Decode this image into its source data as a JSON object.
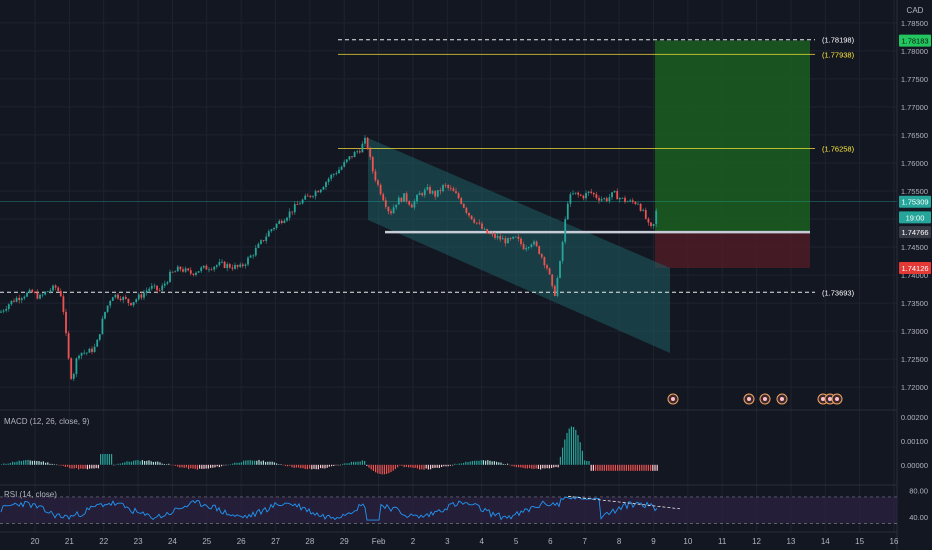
{
  "currency": "CAD",
  "colors": {
    "background": "#131722",
    "grid": "#1f2330",
    "up": "#26a69a",
    "down": "#ef5350",
    "text": "#b2b5be",
    "yellow": "#ffeb3b",
    "profit_zone": "#1b5e20",
    "loss_zone": "#4a1c26",
    "channel": "#1d5c63",
    "rsi_band": "#2a2140",
    "rsi_line": "#2196f3",
    "white_line": "#c8ccd6"
  },
  "chart_data": [
    {
      "type": "candlestick",
      "y_axis_labels": [
        "1.78500",
        "1.78000",
        "1.77500",
        "1.77000",
        "1.76500",
        "1.76000",
        "1.75500",
        "1.75000",
        "1.74500",
        "1.74000",
        "1.73500",
        "1.73000",
        "1.72500",
        "1.72000"
      ],
      "ylim": [
        1.717,
        1.788
      ],
      "x_axis_labels": [
        "20",
        "21",
        "22",
        "23",
        "24",
        "25",
        "26",
        "27",
        "28",
        "29",
        "Feb",
        "2",
        "3",
        "4",
        "5",
        "6",
        "7",
        "8",
        "9",
        "10",
        "11",
        "12",
        "13",
        "14",
        "15",
        "16"
      ],
      "price_tags": [
        {
          "label": "1.78183",
          "value": 1.78183,
          "color": "#22c55e",
          "text_color": "#0b1a0f"
        },
        {
          "label": "1.75309",
          "value": 1.75309,
          "color": "#26a69a",
          "text_color": "#ffffff"
        },
        {
          "label": "19:00",
          "value": 1.7503,
          "color": "#26a69a",
          "text_color": "#ffffff"
        },
        {
          "label": "1.74766",
          "value": 1.74766,
          "color": "#363a45",
          "text_color": "#ffffff"
        },
        {
          "label": "1.74126",
          "value": 1.74126,
          "color": "#e53935",
          "text_color": "#ffffff"
        }
      ],
      "level_labels": [
        {
          "label": "(1.78198)",
          "value": 1.78198,
          "color": "#ffffff",
          "style": "dashed"
        },
        {
          "label": "(1.77938)",
          "value": 1.77938,
          "color": "#ffeb3b",
          "style": "solid"
        },
        {
          "label": "(1.76258)",
          "value": 1.76258,
          "color": "#ffeb3b",
          "style": "solid"
        },
        {
          "label": "(1.73693)",
          "value": 1.73693,
          "color": "#ffffff",
          "style": "dashed"
        }
      ],
      "support_line": 1.74766,
      "current_price": 1.75309,
      "trade_entry": 1.74766,
      "trade_target": 1.78183,
      "trade_stop": 1.74126,
      "close_path": [
        [
          0,
          1.7333
        ],
        [
          8,
          1.7348
        ],
        [
          16,
          1.7358
        ],
        [
          24,
          1.7365
        ],
        [
          32,
          1.7369
        ],
        [
          40,
          1.736
        ],
        [
          48,
          1.7372
        ],
        [
          56,
          1.7378
        ],
        [
          62,
          1.7362
        ],
        [
          68,
          1.7255
        ],
        [
          72,
          1.7212
        ],
        [
          78,
          1.7262
        ],
        [
          88,
          1.7262
        ],
        [
          96,
          1.7272
        ],
        [
          104,
          1.733
        ],
        [
          112,
          1.7365
        ],
        [
          120,
          1.7362
        ],
        [
          130,
          1.735
        ],
        [
          140,
          1.7362
        ],
        [
          150,
          1.7378
        ],
        [
          160,
          1.7372
        ],
        [
          170,
          1.74
        ],
        [
          180,
          1.7412
        ],
        [
          190,
          1.7403
        ],
        [
          200,
          1.741
        ],
        [
          210,
          1.7415
        ],
        [
          220,
          1.7419
        ],
        [
          230,
          1.7416
        ],
        [
          240,
          1.7413
        ],
        [
          250,
          1.7432
        ],
        [
          260,
          1.7455
        ],
        [
          270,
          1.748
        ],
        [
          280,
          1.7496
        ],
        [
          290,
          1.7512
        ],
        [
          300,
          1.753
        ],
        [
          310,
          1.7542
        ],
        [
          320,
          1.7555
        ],
        [
          330,
          1.7575
        ],
        [
          340,
          1.759
        ],
        [
          350,
          1.761
        ],
        [
          360,
          1.7625
        ],
        [
          366,
          1.7642
        ],
        [
          372,
          1.759
        ],
        [
          378,
          1.756
        ],
        [
          384,
          1.7535
        ],
        [
          390,
          1.751
        ],
        [
          396,
          1.753
        ],
        [
          404,
          1.754
        ],
        [
          412,
          1.7525
        ],
        [
          420,
          1.7545
        ],
        [
          428,
          1.7552
        ],
        [
          436,
          1.7542
        ],
        [
          444,
          1.756
        ],
        [
          452,
          1.755
        ],
        [
          460,
          1.7535
        ],
        [
          468,
          1.751
        ],
        [
          476,
          1.7495
        ],
        [
          484,
          1.7478
        ],
        [
          492,
          1.747
        ],
        [
          500,
          1.7465
        ],
        [
          508,
          1.746
        ],
        [
          516,
          1.7465
        ],
        [
          524,
          1.745
        ],
        [
          532,
          1.746
        ],
        [
          540,
          1.744
        ],
        [
          548,
          1.741
        ],
        [
          554,
          1.736
        ],
        [
          560,
          1.742
        ],
        [
          564,
          1.748
        ],
        [
          568,
          1.7535
        ],
        [
          574,
          1.7545
        ],
        [
          582,
          1.754
        ],
        [
          590,
          1.7548
        ],
        [
          598,
          1.7538
        ],
        [
          606,
          1.7535
        ],
        [
          614,
          1.7545
        ],
        [
          622,
          1.7535
        ],
        [
          630,
          1.753
        ],
        [
          638,
          1.753
        ],
        [
          646,
          1.75
        ],
        [
          650,
          1.748
        ],
        [
          654,
          1.749
        ],
        [
          658,
          1.7531
        ]
      ]
    },
    {
      "type": "bar",
      "title": "MACD (12, 26, close, 9)",
      "y_axis_labels": [
        "0.00200",
        "0.00100",
        "0.00000"
      ],
      "ylim": [
        -0.0008,
        0.0022
      ]
    },
    {
      "type": "line",
      "title": "RSI (14, close)",
      "y_axis_labels": [
        "80.00",
        "40.00"
      ],
      "ylim": [
        20,
        85
      ],
      "band": [
        30,
        70
      ]
    }
  ],
  "event_markers": [
    {
      "x": 673
    },
    {
      "x": 749
    },
    {
      "x": 765
    },
    {
      "x": 782
    },
    {
      "x": 823
    },
    {
      "x": 830
    },
    {
      "x": 837
    }
  ]
}
